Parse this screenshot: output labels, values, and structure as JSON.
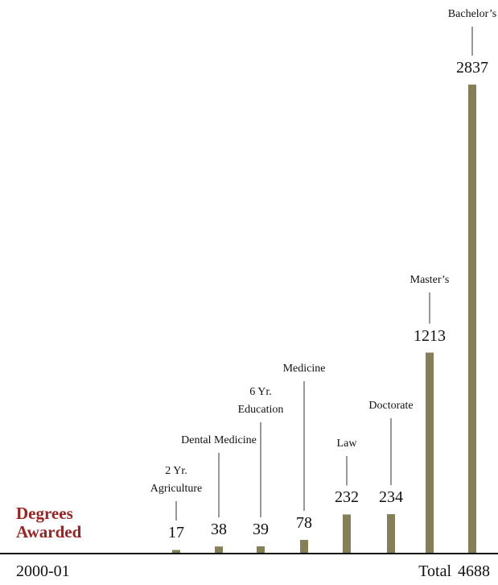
{
  "chart_data": {
    "type": "bar",
    "title": "Degrees Awarded",
    "period": "2000-01",
    "categories": [
      "2 Yr. Agriculture",
      "Dental Medicine",
      "6 Yr. Education",
      "Medicine",
      "Law",
      "Doctorate",
      "Master’s",
      "Bachelor’s"
    ],
    "values": [
      17,
      38,
      39,
      78,
      232,
      234,
      1213,
      2837
    ],
    "color": "#857f58",
    "total_label": "Total",
    "total": 4688
  }
}
